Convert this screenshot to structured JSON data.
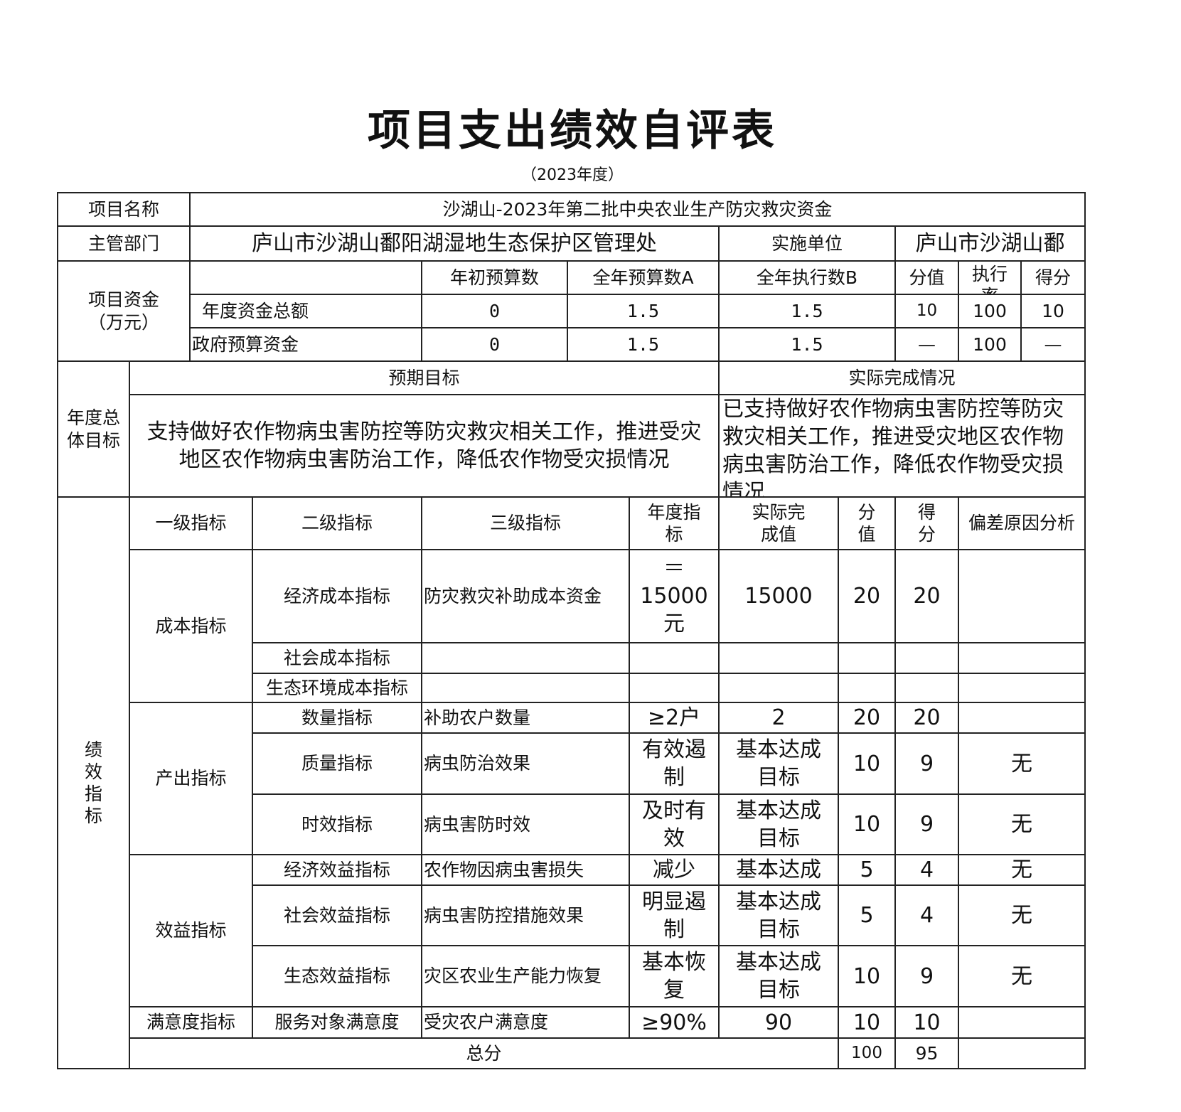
{
  "title": "项目支出绩效自评表",
  "subtitle": "（2023年度）",
  "info": {
    "project_name_label": "项目名称",
    "project_name": "沙湖山-2023年第二批中央农业生产防灾救灾资金",
    "dept_label": "主管部门",
    "dept": "庐山市沙湖山鄱阳湖湿地生态保护区管理处",
    "unit_label": "实施单位",
    "unit": "庐山市沙湖山鄱"
  },
  "funds": {
    "label": "项目资金（万元）",
    "headers": [
      "年初预算数",
      "全年预算数A",
      "全年执行数B",
      "分值",
      "执行率",
      "得分"
    ],
    "rows": [
      {
        "label": "年度资金总额",
        "values": [
          "0",
          "1.5",
          "1.5",
          "10",
          "100",
          "10"
        ]
      },
      {
        "label": "政府预算资金",
        "values": [
          "0",
          "1.5",
          "1.5",
          "—",
          "100",
          "—"
        ]
      }
    ]
  },
  "goals": {
    "label": "年度总体目标",
    "expected_label": "预期目标",
    "actual_label": "实际完成情况",
    "expected": "支持做好农作物病虫害防控等防灾救灾相关工作，推进受灾地区农作物病虫害防治工作，降低农作物受灾损情况",
    "actual": "已支持做好农作物病虫害防控等防灾救灾相关工作，推进受灾地区农作物病虫害防治工作，降低农作物受灾损情况"
  },
  "perf": {
    "label": "绩效指标",
    "headers": [
      "一级指标",
      "二级指标",
      "三级指标",
      "年度指标",
      "实际完成值",
      "分值",
      "得分",
      "偏差原因分析"
    ],
    "groups": [
      "成本指标",
      "产出指标",
      "效益指标",
      "满意度指标"
    ],
    "rows": [
      [
        "经济成本指标",
        "防灾救灾补助成本资金",
        "＝15000元",
        "15000",
        "20",
        "20",
        ""
      ],
      [
        "社会成本指标",
        "",
        "",
        "",
        "",
        "",
        ""
      ],
      [
        "生态环境成本指标",
        "",
        "",
        "",
        "",
        "",
        ""
      ],
      [
        "数量指标",
        "补助农户数量",
        "≥2户",
        "2",
        "20",
        "20",
        ""
      ],
      [
        "质量指标",
        "病虫防治效果",
        "有效遏制",
        "基本达成目标",
        "10",
        "9",
        "无"
      ],
      [
        "时效指标",
        "病虫害防时效",
        "及时有效",
        "基本达成目标",
        "10",
        "9",
        "无"
      ],
      [
        "经济效益指标",
        "农作物因病虫害损失",
        "减少",
        "基本达成",
        "5",
        "4",
        "无"
      ],
      [
        "社会效益指标",
        "病虫害防控措施效果",
        "明显遏制",
        "基本达成目标",
        "5",
        "4",
        "无"
      ],
      [
        "生态效益指标",
        "灾区农业生产能力恢复",
        "基本恢复",
        "基本达成目标",
        "10",
        "9",
        "无"
      ],
      [
        "服务对象满意度",
        "受灾农户满意度",
        "≥90%",
        "90",
        "10",
        "10",
        ""
      ]
    ],
    "total_label": "总分",
    "total_score_value": "100",
    "total_score": "95"
  }
}
